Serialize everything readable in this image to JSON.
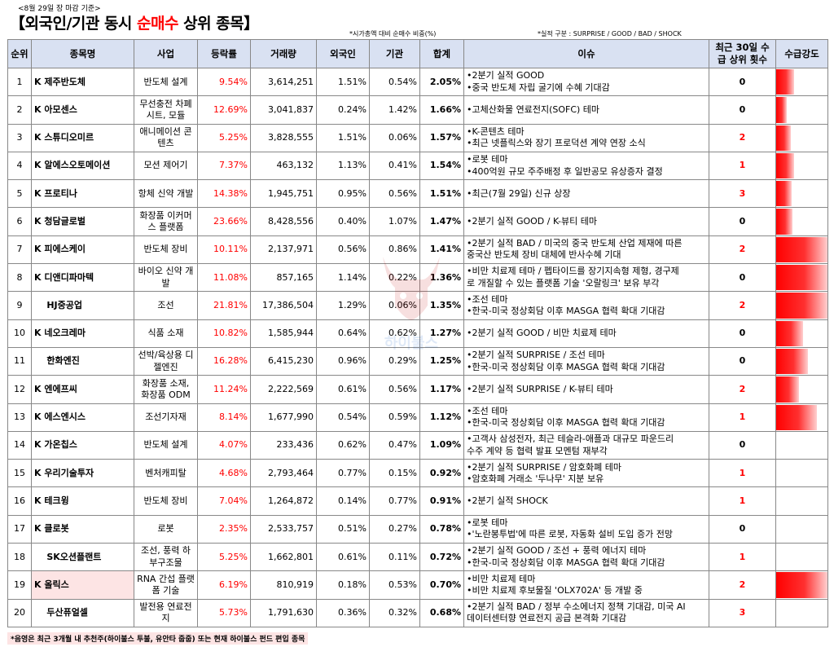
{
  "date_note": "<8월 29일 장 마감 기준>",
  "title_left": "【외국인/기관 동시 ",
  "title_red": "순매수",
  "title_right": " 상위 종목】",
  "note_ratio": "*시가총액 대비 순매수 비중(%)",
  "note_perf": "*실적 구분 : SURPRISE / GOOD / BAD / SHOCK",
  "headers": [
    "순위",
    "종목명",
    "사업",
    "등락률",
    "거래량",
    "외국인",
    "기관",
    "합계",
    "이슈",
    "최근 30일 수급 상위 횟수",
    "수급강도"
  ],
  "watermark_text": "하이불스",
  "footer": "*음영은 최근 3개월 내 추천주(하이불스 투불, 유안타 줍줍) 또는 현재 하이불스 펀드 편입 종목",
  "rows": [
    {
      "rank": "1",
      "market": "K",
      "name": "제주반도체",
      "biz": "반도체 설계",
      "chg": "9.54%",
      "vol": "3,614,251",
      "foreign": "1.51%",
      "inst": "0.54%",
      "total": "2.05%",
      "issue1": "•2분기 실적 GOOD",
      "issue2": "•중국 반도체 자립 굴기에 수혜 기대감",
      "count": "0",
      "strength": 0.35,
      "hl": false
    },
    {
      "rank": "2",
      "market": "K",
      "name": "아모센스",
      "biz": "무선충전 차폐 시트, 모듈",
      "chg": "12.69%",
      "vol": "3,041,837",
      "foreign": "0.24%",
      "inst": "1.42%",
      "total": "1.66%",
      "issue1": "•고체산화물 연료전지(SOFC) 테마",
      "issue2": "",
      "count": "0",
      "strength": 0.2,
      "hl": false
    },
    {
      "rank": "3",
      "market": "K",
      "name": "스튜디오미르",
      "biz": "애니메이션 콘텐츠",
      "chg": "5.25%",
      "vol": "3,828,555",
      "foreign": "1.51%",
      "inst": "0.06%",
      "total": "1.57%",
      "issue1": "•K-콘텐츠 테마",
      "issue2": "•최근 넷플릭스와 장기 프로덕션 계약 연장 소식",
      "count": "2",
      "strength": 0.28,
      "hl": false
    },
    {
      "rank": "4",
      "market": "K",
      "name": "알에스오토메이션",
      "biz": "모션 제어기",
      "chg": "7.37%",
      "vol": "463,132",
      "foreign": "1.13%",
      "inst": "0.41%",
      "total": "1.54%",
      "issue1": "•로봇 테마",
      "issue2": "•400억원 규모 주주배정 후 일반공모 유상증자 결정",
      "count": "1",
      "strength": 0.35,
      "hl": false
    },
    {
      "rank": "5",
      "market": "K",
      "name": "프로티나",
      "biz": "항체 신약 개발",
      "chg": "14.38%",
      "vol": "1,945,751",
      "foreign": "0.95%",
      "inst": "0.56%",
      "total": "1.51%",
      "issue1": "•최근(7월 29일) 신규 상장",
      "issue2": "",
      "count": "3",
      "strength": 0.3,
      "hl": false
    },
    {
      "rank": "6",
      "market": "K",
      "name": "청담글로벌",
      "biz": "화장품 이커머스 플랫폼",
      "chg": "23.66%",
      "vol": "8,428,556",
      "foreign": "0.40%",
      "inst": "1.07%",
      "total": "1.47%",
      "issue1": "•2분기 실적 GOOD / K-뷰티 테마",
      "issue2": "",
      "count": "0",
      "strength": 0.32,
      "hl": false
    },
    {
      "rank": "7",
      "market": "K",
      "name": "피에스케이",
      "biz": "반도체 장비",
      "chg": "10.11%",
      "vol": "2,137,971",
      "foreign": "0.56%",
      "inst": "0.86%",
      "total": "1.41%",
      "issue1": "•2분기 실적 BAD / 미국의 중국 반도체 산업 제재에 따른",
      "issue2": "중국산 반도체 장비 대체에 반사수혜 기대",
      "count": "2",
      "strength": 1.0,
      "hl": false
    },
    {
      "rank": "8",
      "market": "K",
      "name": "디앤디파마텍",
      "biz": "바이오 신약 개발",
      "chg": "11.08%",
      "vol": "857,165",
      "foreign": "1.14%",
      "inst": "0.22%",
      "total": "1.36%",
      "issue1": "•비만 치료제 테마 / 펩타이드를 장기지속형 제형, 경구제",
      "issue2": "로 개질할 수 있는 플랫폼 기술 '오랄링크' 보유 부각",
      "count": "0",
      "strength": 1.0,
      "hl": false
    },
    {
      "rank": "9",
      "market": "",
      "name": "HJ중공업",
      "biz": "조선",
      "chg": "21.81%",
      "vol": "17,386,504",
      "foreign": "1.29%",
      "inst": "0.06%",
      "total": "1.35%",
      "issue1": "•조선 테마",
      "issue2": "•한국-미국 정상회담 이후 MASGA 협력 확대 기대감",
      "count": "2",
      "strength": 1.0,
      "hl": false
    },
    {
      "rank": "10",
      "market": "K",
      "name": "네오크레마",
      "biz": "식품 소재",
      "chg": "10.82%",
      "vol": "1,585,944",
      "foreign": "0.64%",
      "inst": "0.62%",
      "total": "1.27%",
      "issue1": "•2분기 실적 GOOD / 비만 치료제 테마",
      "issue2": "",
      "count": "0",
      "strength": 0.52,
      "hl": false
    },
    {
      "rank": "11",
      "market": "",
      "name": "한화엔진",
      "biz": "선박/육상용 디젤엔진",
      "chg": "16.28%",
      "vol": "6,415,230",
      "foreign": "0.96%",
      "inst": "0.29%",
      "total": "1.25%",
      "issue1": "•2분기 실적 SURPRISE / 조선 테마",
      "issue2": "•한국-미국 정상회담 이후 MASGA 협력 확대 기대감",
      "count": "0",
      "strength": 0.62,
      "hl": false
    },
    {
      "rank": "12",
      "market": "K",
      "name": "엔에프씨",
      "biz": "화장품 소재, 화장품 ODM",
      "chg": "11.24%",
      "vol": "2,222,569",
      "foreign": "0.61%",
      "inst": "0.56%",
      "total": "1.17%",
      "issue1": "•2분기 실적 SURPRISE / K-뷰티 테마",
      "issue2": "",
      "count": "2",
      "strength": 0.45,
      "hl": false
    },
    {
      "rank": "13",
      "market": "K",
      "name": "에스엔시스",
      "biz": "조선기자재",
      "chg": "8.14%",
      "vol": "1,677,990",
      "foreign": "0.54%",
      "inst": "0.59%",
      "total": "1.12%",
      "issue1": "•조선 테마",
      "issue2": "•한국-미국 정상회담 이후 MASGA 협력 확대 기대감",
      "count": "1",
      "strength": 0.8,
      "hl": false
    },
    {
      "rank": "14",
      "market": "K",
      "name": "가온칩스",
      "biz": "반도체 설계",
      "chg": "4.07%",
      "vol": "233,436",
      "foreign": "0.62%",
      "inst": "0.47%",
      "total": "1.09%",
      "issue1": "•고객사 삼성전자, 최근 테슬라-애플과 대규모 파운드리",
      "issue2": "수주 계약 등 협력 발표 모멘텀 재부각",
      "count": "0",
      "strength": 0.0,
      "hl": false
    },
    {
      "rank": "15",
      "market": "K",
      "name": "우리기술투자",
      "biz": "벤처캐피탈",
      "chg": "4.68%",
      "vol": "2,793,464",
      "foreign": "0.77%",
      "inst": "0.15%",
      "total": "0.92%",
      "issue1": "•2분기 실적 SURPRISE / 암호화폐 테마",
      "issue2": "•암호화폐 거래소 '두나무' 지분 보유",
      "count": "1",
      "strength": 0.0,
      "hl": false
    },
    {
      "rank": "16",
      "market": "K",
      "name": "테크윙",
      "biz": "반도체 장비",
      "chg": "7.04%",
      "vol": "1,264,872",
      "foreign": "0.14%",
      "inst": "0.77%",
      "total": "0.91%",
      "issue1": "•2분기 실적 SHOCK",
      "issue2": "",
      "count": "1",
      "strength": 0.0,
      "hl": false
    },
    {
      "rank": "17",
      "market": "K",
      "name": "클로봇",
      "biz": "로봇",
      "chg": "2.35%",
      "vol": "2,533,757",
      "foreign": "0.51%",
      "inst": "0.27%",
      "total": "0.78%",
      "issue1": "•로봇 테마",
      "issue2": "•'노란봉투법'에 따른 로봇, 자동화 설비 도입 증가 전망",
      "count": "0",
      "strength": 0.0,
      "hl": false
    },
    {
      "rank": "18",
      "market": "",
      "name": "SK오션플랜트",
      "biz": "조선, 풍력 하부구조물",
      "chg": "5.25%",
      "vol": "1,662,801",
      "foreign": "0.61%",
      "inst": "0.11%",
      "total": "0.72%",
      "issue1": "•2분기 실적 GOOD / 조선 + 풍력 에너지 테마",
      "issue2": "•한국-미국 정상회담 이후 MASGA 협력 확대 기대감",
      "count": "1",
      "strength": 0.0,
      "hl": false
    },
    {
      "rank": "19",
      "market": "K",
      "name": "올릭스",
      "biz": "RNA 간섭 플랫폼 기술",
      "chg": "6.19%",
      "vol": "810,919",
      "foreign": "0.18%",
      "inst": "0.53%",
      "total": "0.70%",
      "issue1": "•비만 치료제 테마",
      "issue2": "•비만 치료제 후보물질 'OLX702A' 등 개발 중",
      "count": "2",
      "strength": 1.0,
      "hl": true
    },
    {
      "rank": "20",
      "market": "",
      "name": "두산퓨얼셀",
      "biz": "발전용 연료전지",
      "chg": "5.73%",
      "vol": "1,791,630",
      "foreign": "0.36%",
      "inst": "0.32%",
      "total": "0.68%",
      "issue1": "•2분기 실적 BAD / 정부 수소에너지 정책 기대감, 미국 AI",
      "issue2": "데이터센터향 연료전지 공급 본격화 기대감",
      "count": "3",
      "strength": 0.0,
      "hl": false
    }
  ]
}
